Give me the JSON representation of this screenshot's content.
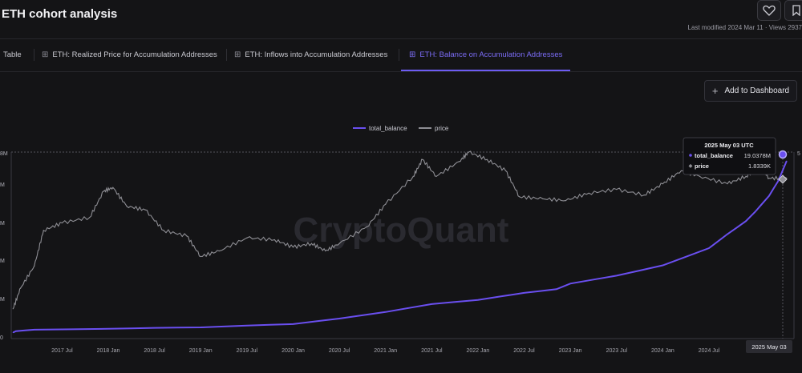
{
  "header": {
    "title": "ETH cohort analysis",
    "modified": "Last modified 2024 Mar 11 · Views 2937"
  },
  "tabs": [
    {
      "label": "Table",
      "active": false
    },
    {
      "label": "ETH: Realized Price for Accumulation Addresses",
      "active": false
    },
    {
      "label": "ETH: Inflows into Accumulation Addresses",
      "active": false
    },
    {
      "label": "ETH: Balance on Accumulation Addresses",
      "active": true
    }
  ],
  "toolbar": {
    "add_label": "Add to Dashboard"
  },
  "legend": [
    {
      "name": "total_balance",
      "color": "#6a4ff0"
    },
    {
      "name": "price",
      "color": "#8e8e94"
    }
  ],
  "watermark": "CryptoQuant",
  "tooltip": {
    "date": "2025 May 03 UTC",
    "rows": [
      {
        "name": "total_balance",
        "value": "19.0378M"
      },
      {
        "name": "price",
        "value": "1.8339K"
      }
    ]
  },
  "cursor_label": "2025 May 03",
  "left_axis_ticks": [
    "8M",
    "M",
    "M",
    "M",
    "M",
    "0"
  ],
  "right_axis_ticks": [
    "5"
  ],
  "chart_data": {
    "type": "line",
    "x_tick_labels": [
      "2017 Jul",
      "2018 Jan",
      "2018 Jul",
      "2019 Jan",
      "2019 Jul",
      "2020 Jan",
      "2020 Jul",
      "2021 Jan",
      "2021 Jul",
      "2022 Jan",
      "2022 Jul",
      "2023 Jan",
      "2023 Jul",
      "2024 Jan",
      "2024 Jul",
      "20"
    ],
    "x_ticks_year": [
      2017.5,
      2018.0,
      2018.5,
      2019.0,
      2019.5,
      2020.0,
      2020.5,
      2021.0,
      2021.5,
      2022.0,
      2022.5,
      2023.0,
      2023.5,
      2024.0,
      2024.5,
      2025.0
    ],
    "x_range_year": [
      2016.95,
      2025.42
    ],
    "series": [
      {
        "name": "total_balance",
        "color": "#6a4ff0",
        "y_range": [
          0,
          20
        ],
        "points_year_value": [
          [
            2016.97,
            0.65
          ],
          [
            2017.0,
            0.8
          ],
          [
            2017.2,
            0.95
          ],
          [
            2018.0,
            1.05
          ],
          [
            2018.5,
            1.15
          ],
          [
            2019.0,
            1.2
          ],
          [
            2019.5,
            1.4
          ],
          [
            2020.0,
            1.55
          ],
          [
            2020.5,
            2.15
          ],
          [
            2021.0,
            2.85
          ],
          [
            2021.5,
            3.7
          ],
          [
            2022.0,
            4.15
          ],
          [
            2022.5,
            4.9
          ],
          [
            2022.85,
            5.3
          ],
          [
            2023.0,
            5.9
          ],
          [
            2023.5,
            6.75
          ],
          [
            2024.0,
            7.85
          ],
          [
            2024.5,
            9.7
          ],
          [
            2024.7,
            11.2
          ],
          [
            2024.9,
            12.6
          ],
          [
            2025.0,
            13.6
          ],
          [
            2025.15,
            15.3
          ],
          [
            2025.25,
            16.9
          ],
          [
            2025.34,
            19.04
          ]
        ]
      },
      {
        "name": "price",
        "color": "#8e8e94",
        "y_range": [
          0,
          5.0
        ],
        "points_year_value": [
          [
            2016.97,
            0.8
          ],
          [
            2017.05,
            1.35
          ],
          [
            2017.2,
            1.95
          ],
          [
            2017.3,
            2.9
          ],
          [
            2017.5,
            3.1
          ],
          [
            2017.8,
            3.25
          ],
          [
            2017.95,
            3.95
          ],
          [
            2018.05,
            4.05
          ],
          [
            2018.2,
            3.55
          ],
          [
            2018.4,
            3.45
          ],
          [
            2018.6,
            2.9
          ],
          [
            2018.85,
            2.75
          ],
          [
            2019.0,
            2.2
          ],
          [
            2019.2,
            2.35
          ],
          [
            2019.5,
            2.7
          ],
          [
            2019.8,
            2.65
          ],
          [
            2020.0,
            2.45
          ],
          [
            2020.2,
            2.55
          ],
          [
            2020.35,
            2.35
          ],
          [
            2020.5,
            2.55
          ],
          [
            2020.8,
            3.0
          ],
          [
            2021.0,
            3.6
          ],
          [
            2021.3,
            4.35
          ],
          [
            2021.4,
            4.8
          ],
          [
            2021.55,
            4.35
          ],
          [
            2021.8,
            4.75
          ],
          [
            2021.9,
            5.0
          ],
          [
            2022.1,
            4.8
          ],
          [
            2022.3,
            4.5
          ],
          [
            2022.45,
            3.8
          ],
          [
            2022.7,
            3.75
          ],
          [
            2022.95,
            3.7
          ],
          [
            2023.2,
            3.9
          ],
          [
            2023.5,
            4.0
          ],
          [
            2023.8,
            3.85
          ],
          [
            2024.0,
            4.15
          ],
          [
            2024.2,
            4.5
          ],
          [
            2024.4,
            4.35
          ],
          [
            2024.7,
            4.15
          ],
          [
            2024.9,
            4.35
          ],
          [
            2025.05,
            4.6
          ],
          [
            2025.15,
            4.3
          ],
          [
            2025.34,
            4.3
          ]
        ]
      }
    ]
  }
}
